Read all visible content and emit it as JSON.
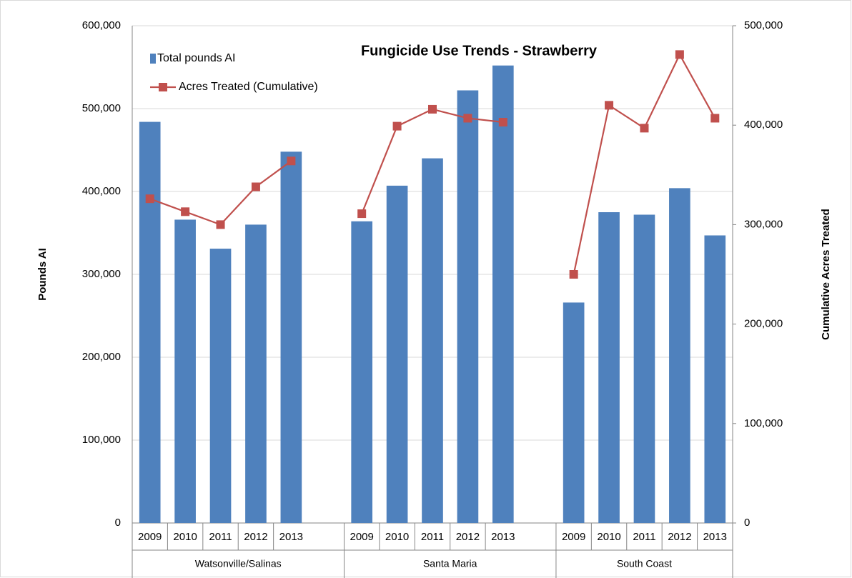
{
  "chart_data": {
    "type": "bar_line",
    "title": "Fungicide Use Trends - Strawberry",
    "categories": [
      "2009",
      "2010",
      "2011",
      "2012",
      "2013",
      null,
      "2009",
      "2010",
      "2011",
      "2012",
      "2013",
      null,
      "2009",
      "2010",
      "2011",
      "2012",
      "2013"
    ],
    "groups": [
      "Watsonville/Salinas",
      "Santa Maria",
      "South Coast"
    ],
    "series": [
      {
        "name": "Total pounds AI",
        "type": "bar",
        "color": "#4f81bd",
        "values": [
          484000,
          366000,
          331000,
          360000,
          448000,
          null,
          364000,
          407000,
          440000,
          522000,
          552000,
          null,
          266000,
          375000,
          372000,
          404000,
          347000
        ]
      },
      {
        "name": "Acres Treated (Cumulative)",
        "type": "line",
        "axis": "y2",
        "color": "#c0504d",
        "values": [
          326000,
          313000,
          300000,
          338000,
          364000,
          null,
          311000,
          399000,
          416000,
          407000,
          403000,
          null,
          250000,
          420000,
          397000,
          471000,
          407000
        ]
      }
    ],
    "ylabel": "Pounds AI",
    "y2label": "Cumulative Acres Treated",
    "ylim": [
      0,
      600000
    ],
    "yticks": [
      0,
      {
        "value": 100000,
        "label": "100,000"
      },
      {
        "value": 200000,
        "label": "200,000"
      },
      {
        "value": 300000,
        "label": "300,000"
      },
      {
        "value": 400000,
        "label": "400,000"
      },
      {
        "value": 500000,
        "label": "500,000"
      },
      {
        "value": 600000,
        "label": "600,000"
      }
    ],
    "y2lim": [
      0,
      500000
    ],
    "y2ticks": [
      0,
      {
        "value": 100000,
        "label": "100,000"
      },
      {
        "value": 200000,
        "label": "200,000"
      },
      {
        "value": 300000,
        "label": "300,000"
      },
      {
        "value": 400000,
        "label": "400,000"
      },
      {
        "value": 500000,
        "label": "500,000"
      }
    ],
    "grid": true,
    "legend": "top-left"
  }
}
